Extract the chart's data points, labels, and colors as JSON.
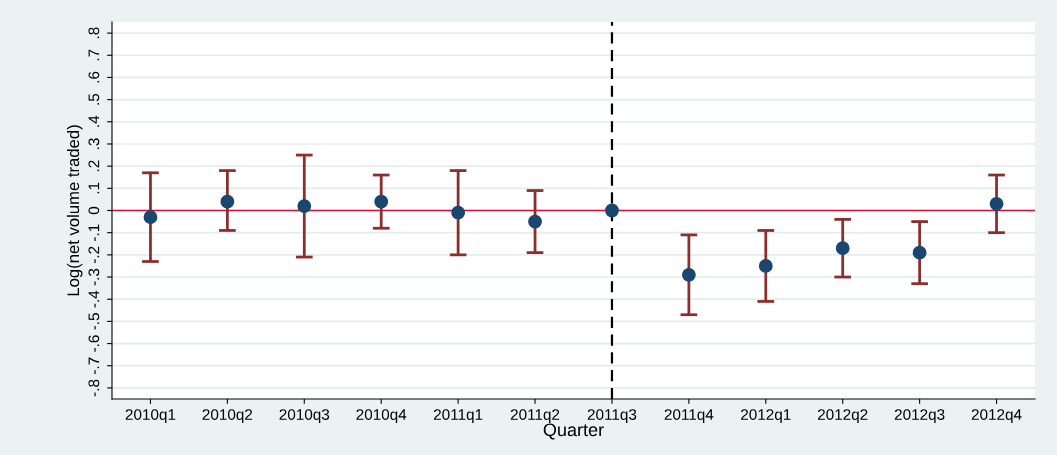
{
  "chart_data": {
    "type": "scatter",
    "xlabel": "Quarter",
    "ylabel": "Log(net volume traded)",
    "categories": [
      "2010q1",
      "2010q2",
      "2010q3",
      "2010q4",
      "2011q1",
      "2011q2",
      "2011q3",
      "2011q4",
      "2012q1",
      "2012q2",
      "2012q3",
      "2012q4"
    ],
    "series": [
      {
        "color": "#1a476f",
        "values": [
          -0.03,
          0.04,
          0.02,
          0.04,
          -0.01,
          -0.05,
          0,
          -0.29,
          -0.25,
          -0.17,
          -0.19,
          0.03
        ],
        "errors": [
          [
            -0.23,
            0.17
          ],
          [
            -0.09,
            0.18
          ],
          [
            -0.21,
            0.25
          ],
          [
            -0.08,
            0.16
          ],
          [
            -0.2,
            0.18
          ],
          [
            -0.19,
            0.09
          ],
          null,
          [
            -0.47,
            -0.11
          ],
          [
            -0.41,
            -0.09
          ],
          [
            -0.3,
            -0.04
          ],
          [
            -0.33,
            -0.05
          ],
          [
            -0.1,
            0.16
          ]
        ]
      }
    ],
    "ylim": [
      -0.85,
      0.85
    ],
    "yticks": [
      {
        "value": -0.8,
        "label": "-.8"
      },
      {
        "value": -0.7,
        "label": "-.7"
      },
      {
        "value": -0.6,
        "label": "-.6"
      },
      {
        "value": -0.5,
        "label": "-.5"
      },
      {
        "value": -0.4,
        "label": "-.4"
      },
      {
        "value": -0.3,
        "label": "-.3"
      },
      {
        "value": -0.2,
        "label": "-.2"
      },
      {
        "value": -0.1,
        "label": "-.1"
      },
      {
        "value": 0,
        "label": "0"
      },
      {
        "value": 0.1,
        "label": ".1"
      },
      {
        "value": 0.2,
        "label": ".2"
      },
      {
        "value": 0.3,
        "label": ".3"
      },
      {
        "value": 0.4,
        "label": ".4"
      },
      {
        "value": 0.5,
        "label": ".5"
      },
      {
        "value": 0.6,
        "label": ".6"
      },
      {
        "value": 0.7,
        "label": ".7"
      },
      {
        "value": 0.8,
        "label": ".8"
      }
    ],
    "ref_lines": [
      {
        "axis": "y",
        "value": 0,
        "color": "#d0103a",
        "line_style": "solid"
      },
      {
        "axis": "x",
        "value": "2011q3",
        "color": "#000000",
        "line_style": "dashed"
      }
    ],
    "grid": "y",
    "marker": "circle",
    "legend": false
  }
}
